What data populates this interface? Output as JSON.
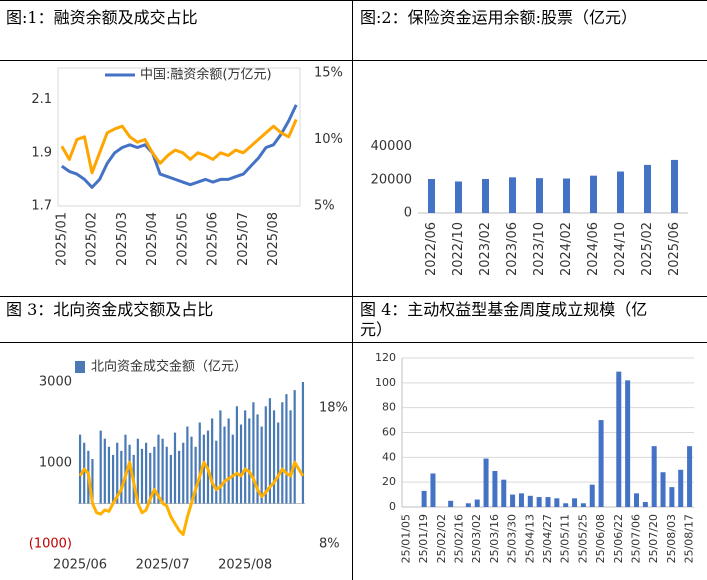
{
  "chart_data": [
    {
      "type": "line",
      "title": "图:1：融资余额及成交占比",
      "categories": [
        "2025/01",
        null,
        null,
        null,
        "2025/02",
        null,
        null,
        null,
        "2025/03",
        null,
        null,
        null,
        "2025/04",
        null,
        null,
        null,
        "2025/05",
        null,
        null,
        null,
        "2025/06",
        null,
        null,
        null,
        "2025/07",
        null,
        null,
        null,
        "2025/08",
        null,
        null,
        null
      ],
      "series": [
        {
          "name": "中国:融资余额(万亿元)",
          "color": "#4472c4",
          "values": [
            1.85,
            1.83,
            1.82,
            1.8,
            1.77,
            1.8,
            1.86,
            1.9,
            1.92,
            1.93,
            1.92,
            1.93,
            1.9,
            1.82,
            1.81,
            1.8,
            1.79,
            1.78,
            1.79,
            1.8,
            1.79,
            1.8,
            1.8,
            1.81,
            1.82,
            1.85,
            1.88,
            1.92,
            1.93,
            1.97,
            2.02,
            2.08
          ]
        },
        {
          "color": "#ffa500",
          "axis": "y2",
          "values": [
            9.5,
            8.5,
            10.0,
            10.2,
            7.5,
            9.0,
            10.5,
            10.8,
            11.0,
            10.2,
            9.8,
            10.0,
            9.0,
            8.2,
            8.8,
            9.2,
            9.0,
            8.5,
            9.0,
            8.8,
            8.5,
            9.0,
            8.8,
            9.2,
            9.0,
            9.5,
            10.0,
            10.5,
            11.0,
            10.5,
            10.2,
            11.5
          ]
        }
      ],
      "ylim": [
        1.7,
        2.2
      ],
      "yticks": [
        1.7,
        1.9,
        2.1
      ],
      "y2lim": [
        5,
        15
      ],
      "y2ticks": [
        {
          "value": 5,
          "label": "5%"
        },
        {
          "value": 10,
          "label": "10%"
        },
        {
          "value": 15,
          "label": "15%"
        }
      ],
      "legend": "top"
    },
    {
      "type": "bar",
      "title": "图:2：保险资金运用余额:股票（亿元）",
      "categories": [
        "2022/06",
        "2022/10",
        "2023/02",
        "2023/06",
        "2023/10",
        "2024/02",
        "2024/06",
        "2024/10",
        "2025/02",
        "2025/06"
      ],
      "color": "#4472c4",
      "values": [
        20500,
        19000,
        20500,
        21500,
        21000,
        20800,
        22500,
        25000,
        29000,
        32000
      ],
      "ylim": [
        0,
        44000
      ],
      "yticks": [
        0,
        20000,
        40000
      ]
    },
    {
      "type": "bar",
      "title": "图 3：北向资金成交额及占比",
      "categories": [
        "2025/06",
        null,
        null,
        null,
        null,
        null,
        null,
        null,
        null,
        null,
        null,
        null,
        null,
        null,
        null,
        null,
        null,
        null,
        null,
        null,
        "2025/07",
        null,
        null,
        null,
        null,
        null,
        null,
        null,
        null,
        null,
        null,
        null,
        null,
        null,
        null,
        null,
        null,
        null,
        null,
        null,
        "2025/08",
        null,
        null,
        null,
        null,
        null,
        null,
        null,
        null,
        null,
        null,
        null,
        null,
        null,
        null
      ],
      "series": [
        {
          "name": "北向资金成交金额（亿元）",
          "color": "#4a7ab5",
          "values": [
            1700,
            1500,
            1300,
            1100,
            null,
            1800,
            1600,
            1400,
            1200,
            1500,
            1300,
            1700,
            1450,
            1200,
            1600,
            1350,
            1500,
            1250,
            1400,
            1700,
            1600,
            1400,
            1200,
            1750,
            1300,
            1500,
            1900,
            1650,
            1400,
            2000,
            1700,
            1800,
            2100,
            1550,
            2300,
            1900,
            2100,
            1700,
            2400,
            1950,
            2300,
            2100,
            2500,
            2200,
            1900,
            2400,
            2600,
            2300,
            2000,
            2500,
            2700,
            2300,
            2800,
            null,
            3000
          ]
        },
        {
          "type": "line",
          "color": "#ffb000",
          "axis": "y2",
          "values": [
            13,
            13.5,
            13.2,
            11,
            10.3,
            10.2,
            10.5,
            10.4,
            11,
            11.5,
            12,
            13,
            14,
            12.5,
            11,
            10.3,
            10.5,
            11.3,
            12,
            11.5,
            11,
            10.8,
            10,
            9.5,
            9,
            8.7,
            10,
            11,
            12,
            13,
            14,
            13.5,
            12.5,
            12,
            12.2,
            12.6,
            12.8,
            13,
            13.2,
            13,
            13.5,
            13.3,
            12.8,
            12,
            11.5,
            11.8,
            12.2,
            12.5,
            13,
            13.5,
            13.2,
            13,
            14,
            13.5,
            13
          ]
        }
      ],
      "ylim": [
        -1000,
        3000
      ],
      "yticks": [
        {
          "value": -1000,
          "label": "(1000)",
          "color": "#c00000"
        },
        1000,
        3000
      ],
      "y2lim": [
        8,
        19.9
      ],
      "y2ticks": [
        {
          "value": 8,
          "label": "8%"
        },
        {
          "value": 18,
          "label": "18%"
        }
      ],
      "legend": "top"
    },
    {
      "type": "bar",
      "title": "图 4：主动权益型基金周度成立规模（亿元）",
      "categories": [
        "25/01/05",
        null,
        "25/01/19",
        null,
        "25/02/02",
        null,
        "25/02/16",
        null,
        "25/03/02",
        null,
        "25/03/16",
        null,
        "25/03/30",
        null,
        "25/04/13",
        null,
        "25/04/27",
        null,
        "25/05/11",
        null,
        "25/05/25",
        null,
        "25/06/08",
        null,
        "25/06/22",
        null,
        "25/07/06",
        null,
        "25/07/20",
        null,
        "25/08/03",
        null,
        "25/08/17"
      ],
      "color": "#4472c4",
      "values": [
        0,
        0,
        13,
        27,
        0,
        5,
        0,
        3,
        6,
        39,
        29,
        22,
        10,
        11,
        9,
        8,
        8,
        7,
        3,
        7,
        3,
        18,
        70,
        0,
        109,
        102,
        11,
        4,
        49,
        28,
        16,
        30,
        49
      ],
      "ylim": [
        0,
        120
      ],
      "yticks": [
        0,
        20,
        40,
        60,
        80,
        100,
        120
      ],
      "grid": true
    }
  ]
}
